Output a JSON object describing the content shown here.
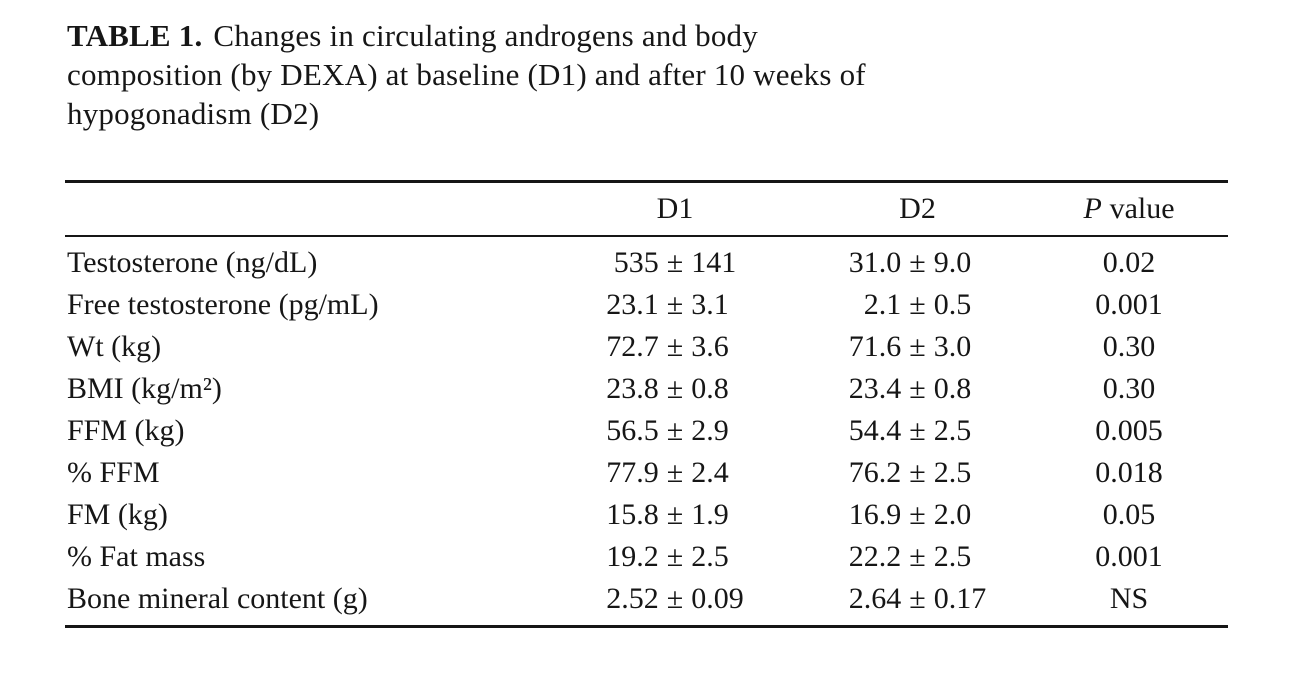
{
  "caption": {
    "label": "TABLE 1.",
    "line1": "Changes in circulating androgens and body",
    "line2": "composition (by DEXA) at baseline (D1) and after 10 weeks of",
    "line3": "hypogonadism (D2)"
  },
  "table": {
    "plus_minus": "±",
    "header": {
      "col_label": "",
      "col_d1": "D1",
      "col_d2": "D2",
      "col_p_italic": "P",
      "col_p_suffix": "value"
    },
    "rows": [
      {
        "label": "Testosterone (ng/dL)",
        "d1_mean": "535",
        "d1_sd": "141",
        "d2_mean": "31.0",
        "d2_sd": "9.0",
        "p": "0.02"
      },
      {
        "label": "Free testosterone (pg/mL)",
        "d1_mean": "23.1",
        "d1_sd": "3.1",
        "d2_mean": "2.1",
        "d2_sd": "0.5",
        "p": "0.001"
      },
      {
        "label": "Wt (kg)",
        "d1_mean": "72.7",
        "d1_sd": "3.6",
        "d2_mean": "71.6",
        "d2_sd": "3.0",
        "p": "0.30"
      },
      {
        "label": "BMI (kg/m²)",
        "d1_mean": "23.8",
        "d1_sd": "0.8",
        "d2_mean": "23.4",
        "d2_sd": "0.8",
        "p": "0.30"
      },
      {
        "label": "FFM (kg)",
        "d1_mean": "56.5",
        "d1_sd": "2.9",
        "d2_mean": "54.4",
        "d2_sd": "2.5",
        "p": "0.005"
      },
      {
        "label": "% FFM",
        "d1_mean": "77.9",
        "d1_sd": "2.4",
        "d2_mean": "76.2",
        "d2_sd": "2.5",
        "p": "0.018"
      },
      {
        "label": "FM (kg)",
        "d1_mean": "15.8",
        "d1_sd": "1.9",
        "d2_mean": "16.9",
        "d2_sd": "2.0",
        "p": "0.05"
      },
      {
        "label": "% Fat mass",
        "d1_mean": "19.2",
        "d1_sd": "2.5",
        "d2_mean": "22.2",
        "d2_sd": "2.5",
        "p": "0.001"
      },
      {
        "label": "Bone mineral content (g)",
        "d1_mean": "2.52",
        "d1_sd": "0.09",
        "d2_mean": "2.64",
        "d2_sd": "0.17",
        "p": "NS"
      }
    ]
  }
}
